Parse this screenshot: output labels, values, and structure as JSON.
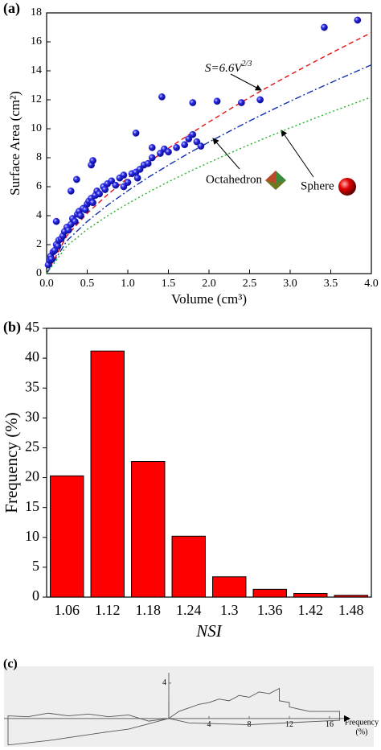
{
  "chart_data": [
    {
      "type": "scatter",
      "label": "(a)",
      "xlabel": "Volume (cm³)",
      "ylabel": "Surface Area (cm²)",
      "xlim": [
        0,
        4
      ],
      "ylim": [
        0,
        18
      ],
      "xticks": [
        {
          "value": 0,
          "label": "0.0"
        },
        0.5,
        {
          "value": 1,
          "label": "1.0"
        },
        1.5,
        {
          "value": 2,
          "label": "2.0"
        },
        2.5,
        {
          "value": 3,
          "label": "3.0"
        },
        3.5,
        {
          "value": 4,
          "label": "4.0"
        }
      ],
      "yticks": [
        0,
        2,
        4,
        6,
        8,
        10,
        12,
        14,
        16,
        18
      ],
      "series": [
        {
          "color": "#1a1adc",
          "x": [
            0.02,
            0.04,
            0.05,
            0.06,
            0.08,
            0.1,
            0.12,
            0.14,
            0.15,
            0.18,
            0.2,
            0.22,
            0.25,
            0.27,
            0.3,
            0.32,
            0.35,
            0.38,
            0.4,
            0.42,
            0.45,
            0.48,
            0.5,
            0.52,
            0.55,
            0.57,
            0.6,
            0.62,
            0.65,
            0.7,
            0.72,
            0.75,
            0.8,
            0.85,
            0.9,
            0.95,
            1.0,
            1.05,
            1.1,
            1.12,
            1.15,
            1.2,
            1.25,
            1.3,
            1.4,
            1.45,
            1.5,
            1.6,
            1.7,
            1.75,
            1.8,
            1.85,
            1.9,
            3.42,
            3.83,
            0.12,
            0.3,
            0.37,
            0.55,
            0.57,
            1.1,
            1.42,
            1.8,
            2.1,
            2.4,
            2.63,
            1.3,
            0.95
          ],
          "values": [
            0.6,
            0.9,
            1.2,
            1.0,
            1.5,
            1.6,
            2.0,
            1.9,
            2.3,
            2.4,
            2.6,
            2.9,
            3.2,
            3.0,
            3.4,
            3.8,
            3.6,
            4.1,
            4.3,
            4.0,
            4.5,
            4.4,
            4.8,
            5.0,
            5.2,
            4.9,
            5.4,
            5.7,
            5.5,
            6.0,
            5.8,
            6.2,
            6.4,
            6.1,
            6.6,
            6.8,
            6.3,
            6.9,
            7.0,
            6.6,
            7.2,
            7.5,
            7.6,
            8.0,
            8.3,
            8.6,
            8.4,
            8.7,
            8.9,
            9.3,
            9.6,
            9.1,
            8.8,
            17.0,
            17.5,
            3.6,
            5.7,
            6.5,
            7.5,
            7.8,
            9.7,
            12.2,
            11.8,
            11.9,
            11.8,
            12.0,
            8.7,
            6.0
          ]
        }
      ],
      "curves": [
        {
          "color": "#e01010",
          "dash": "6,4",
          "x": [
            0,
            0.25,
            0.5,
            0.75,
            1,
            1.25,
            1.5,
            1.75,
            2,
            2.25,
            2.5,
            2.75,
            3,
            3.25,
            3.5,
            3.75,
            4
          ],
          "values": [
            0,
            2.62,
            4.16,
            5.45,
            6.6,
            7.66,
            8.65,
            9.58,
            10.47,
            11.33,
            12.16,
            12.96,
            13.73,
            14.48,
            15.21,
            15.93,
            16.63
          ]
        },
        {
          "color": "#1030b0",
          "dash": "8,3,2,3",
          "x": [
            0,
            0.25,
            0.5,
            0.75,
            1,
            1.25,
            1.5,
            1.75,
            2,
            2.25,
            2.5,
            2.75,
            3,
            3.25,
            3.5,
            3.75,
            4
          ],
          "values": [
            0,
            2.27,
            3.6,
            4.72,
            5.72,
            6.64,
            7.49,
            8.31,
            9.08,
            9.82,
            10.54,
            11.23,
            11.9,
            12.55,
            13.18,
            13.8,
            14.41
          ]
        },
        {
          "color": "#20b020",
          "dash": "2,3",
          "x": [
            0,
            0.25,
            0.5,
            0.75,
            1,
            1.25,
            1.5,
            1.75,
            2,
            2.25,
            2.5,
            2.75,
            3,
            3.25,
            3.5,
            3.75,
            4
          ],
          "values": [
            0,
            1.92,
            3.05,
            3.99,
            4.836,
            5.61,
            6.34,
            7.02,
            7.67,
            8.3,
            8.91,
            9.49,
            10.06,
            10.61,
            11.15,
            11.67,
            12.19
          ]
        }
      ],
      "annotations": [
        {
          "text": "S=6.6V",
          "sup": "2/3"
        },
        {
          "text": "Octahedron"
        },
        {
          "text": "Sphere"
        }
      ]
    },
    {
      "type": "bar",
      "label": "(b)",
      "xlabel": "NSI",
      "ylabel": "Frequency (%)",
      "color": "#ff0000",
      "categories": [
        "1.06",
        "1.12",
        "1.18",
        "1.24",
        "1.3",
        "1.36",
        "1.42",
        "1.48"
      ],
      "values": [
        20.3,
        41.2,
        22.7,
        10.2,
        3.4,
        1.3,
        0.6,
        0.3
      ],
      "ylim": [
        0,
        45
      ],
      "yticks": [
        0,
        5,
        10,
        15,
        20,
        25,
        30,
        35,
        40,
        45
      ]
    },
    {
      "type": "line",
      "label": "(c)",
      "xlabel": [
        "Frequency",
        "(%)"
      ],
      "xlim": [
        -16.4,
        20.4
      ],
      "ylim": [
        -3.2,
        5.9
      ],
      "xticks": [
        4,
        8,
        12,
        16
      ],
      "yticks": [
        4
      ],
      "series": [
        {
          "color": "#555555",
          "x": [
            0,
            1,
            2,
            3,
            4,
            5,
            6,
            7,
            8,
            9,
            10,
            11,
            11,
            12,
            12,
            14,
            17,
            17,
            8,
            5,
            2,
            0,
            -2,
            -4,
            -6,
            -8,
            -10,
            -12,
            -14,
            -16,
            -16,
            -12,
            -9,
            -6,
            -4,
            -2,
            0,
            0,
            0
          ],
          "values": [
            0,
            0.8,
            1.2,
            1.6,
            1.8,
            2.2,
            2.0,
            2.6,
            2.4,
            3.0,
            2.8,
            3.4,
            2.0,
            1.8,
            1.3,
            0.8,
            0.8,
            -0.2,
            -0.7,
            -0.6,
            -0.5,
            0,
            -0.3,
            0.4,
            0.2,
            0.5,
            0.3,
            0.6,
            0.2,
            0.3,
            -3.0,
            -2.5,
            -2.0,
            -1.5,
            -1.2,
            -0.6,
            0,
            2.0,
            0
          ]
        }
      ]
    }
  ]
}
